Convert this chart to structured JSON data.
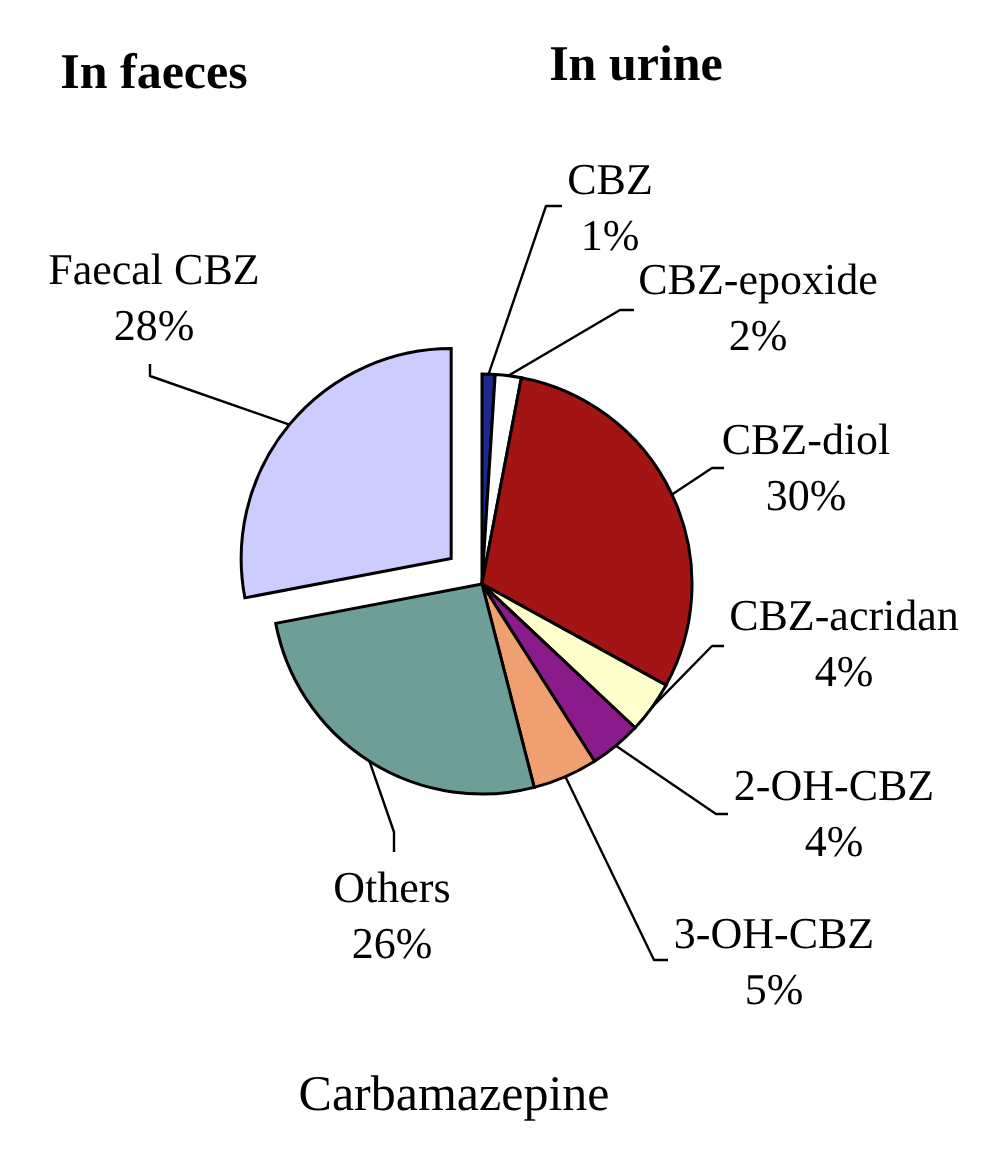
{
  "chart_data": {
    "type": "pie",
    "title": "Carbamazepine",
    "annotations": [
      "In faeces",
      "In urine"
    ],
    "categories": [
      "CBZ",
      "CBZ-epoxide",
      "CBZ-diol",
      "CBZ-acridan",
      "2-OH-CBZ",
      "3-OH-CBZ",
      "Others",
      "Faecal CBZ"
    ],
    "values": [
      1,
      2,
      30,
      4,
      4,
      5,
      26,
      28
    ],
    "value_labels": [
      "1%",
      "2%",
      "30%",
      "4%",
      "4%",
      "5%",
      "26%",
      "28%"
    ],
    "colors": [
      "#1c2a8c",
      "#ffffff",
      "#a31515",
      "#ffffcc",
      "#8b1a8b",
      "#f0a070",
      "#6e9e98",
      "#ccccff"
    ]
  }
}
